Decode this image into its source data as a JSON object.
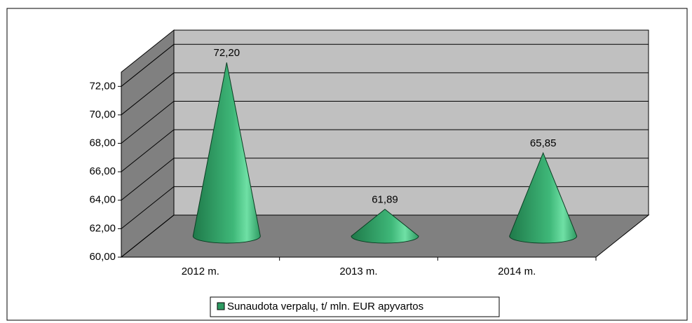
{
  "chart_data": {
    "type": "cone",
    "categories": [
      "2012 m.",
      "2013 m.",
      "2014 m."
    ],
    "series": [
      {
        "name": "Sunaudota verpalų, t/ mln. EUR apyvartos",
        "color": "#2e9a62",
        "values": [
          72.2,
          61.89,
          65.85
        ],
        "value_labels": [
          "72,20",
          "61,89",
          "65,85"
        ]
      }
    ],
    "ylim": [
      60,
      73
    ],
    "yticks": [
      {
        "value": 60,
        "label": "60,00"
      },
      {
        "value": 62,
        "label": "62,00"
      },
      {
        "value": 64,
        "label": "64,00"
      },
      {
        "value": 66,
        "label": "66,00"
      },
      {
        "value": 68,
        "label": "68,00"
      },
      {
        "value": 70,
        "label": "70,00"
      },
      {
        "value": 72,
        "label": "72,00"
      }
    ],
    "grid": true,
    "legend": "bottom"
  }
}
